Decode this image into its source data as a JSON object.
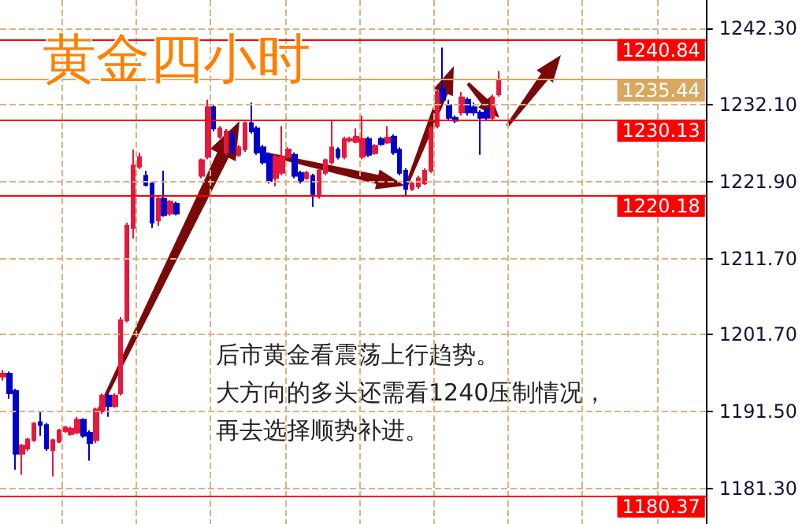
{
  "chart_data": {
    "type": "candlestick",
    "title": "黄金四小时",
    "annotations": [
      "后市黄金看震荡上行趋势。",
      "大方向的多头还需看1240压制情况，",
      "再去选择顺势补进。"
    ],
    "categories": [
      null,
      null,
      null,
      null,
      null,
      null,
      null,
      null,
      null,
      null,
      null,
      null,
      null,
      null,
      null,
      null,
      null,
      null,
      null,
      null,
      null,
      null,
      null,
      null,
      null,
      null,
      null,
      null,
      null,
      null,
      null,
      null,
      null,
      null,
      null,
      null,
      null,
      null,
      null,
      null,
      null,
      null,
      null,
      null,
      null,
      null,
      null,
      null,
      null,
      null,
      null,
      null,
      null,
      null,
      null,
      null,
      null,
      null,
      null,
      null,
      null,
      null,
      null,
      null,
      null,
      null,
      null,
      null,
      null,
      null,
      null,
      null,
      null,
      null,
      null,
      null,
      null,
      null,
      null,
      null,
      null,
      null,
      null,
      null,
      null,
      null,
      null,
      null,
      null,
      null,
      null,
      null,
      null,
      null,
      null,
      null,
      null,
      null,
      null,
      null,
      null,
      null,
      null,
      null,
      null,
      null,
      null,
      null,
      null,
      null,
      null,
      null,
      null,
      null
    ],
    "ohlc": [
      [
        1196.1,
        1197.0,
        1195.6,
        1196.5
      ],
      [
        1196.5,
        1196.8,
        1193.2,
        1193.9
      ],
      [
        1194.2,
        1194.5,
        1183.8,
        1185.9
      ],
      [
        1185.9,
        1187.2,
        1183.1,
        1187.0
      ],
      [
        1186.6,
        1188.0,
        1186.3,
        1187.8
      ],
      [
        1187.7,
        1190.1,
        1187.5,
        1189.9
      ],
      [
        1190.1,
        1191.5,
        1188.3,
        1189.7
      ],
      [
        1189.7,
        1190.0,
        1186.3,
        1186.6
      ],
      [
        1186.4,
        1187.9,
        1182.9,
        1187.7
      ],
      [
        1187.5,
        1189.2,
        1187.3,
        1189.0
      ],
      [
        1188.9,
        1189.6,
        1188.7,
        1189.4
      ],
      [
        1188.5,
        1189.5,
        1188.3,
        1189.2
      ],
      [
        1188.7,
        1190.8,
        1188.5,
        1190.4
      ],
      [
        1190.4,
        1190.6,
        1188.0,
        1188.3
      ],
      [
        1188.7,
        1189.0,
        1185.0,
        1187.3
      ],
      [
        1187.7,
        1192.0,
        1187.3,
        1191.8
      ],
      [
        1191.5,
        1193.9,
        1191.2,
        1193.6
      ],
      [
        1193.6,
        1193.9,
        1190.8,
        1192.2
      ],
      [
        1192.2,
        1193.9,
        1192.0,
        1193.6
      ],
      [
        1193.9,
        1204.0,
        1193.6,
        1203.6
      ],
      [
        1203.6,
        1216.5,
        1203.3,
        1216.1
      ],
      [
        1215.8,
        1226.2,
        1214.4,
        1224.1
      ],
      [
        1223.9,
        1225.8,
        1223.6,
        1225.2
      ],
      [
        1222.7,
        1223.4,
        1221.3,
        1221.5
      ],
      [
        1221.7,
        1222.0,
        1215.8,
        1216.5
      ],
      [
        1216.8,
        1220.0,
        1216.1,
        1219.7
      ],
      [
        1219.7,
        1223.4,
        1217.3,
        1217.5
      ],
      [
        1217.7,
        1219.5,
        1217.4,
        1219.3
      ],
      [
        1219.0,
        1219.3,
        1217.5,
        1217.7
      ],
      null,
      null,
      null,
      [
        1222.7,
        1225.0,
        1222.4,
        1224.8
      ],
      [
        1225.2,
        1232.8,
        1224.9,
        1231.8
      ],
      [
        1231.8,
        1232.1,
        1228.6,
        1229.0
      ],
      [
        1227.9,
        1229.3,
        1227.6,
        1229.0
      ],
      [
        1225.8,
        1228.9,
        1225.5,
        1228.6
      ],
      [
        1228.3,
        1228.6,
        1225.5,
        1225.8
      ],
      [
        1225.5,
        1226.8,
        1225.2,
        1226.5
      ],
      [
        1226.2,
        1229.9,
        1225.9,
        1229.7
      ],
      [
        1229.7,
        1232.4,
        1228.3,
        1228.6
      ],
      [
        1229.0,
        1229.3,
        1225.5,
        1225.8
      ],
      [
        1226.5,
        1226.8,
        1224.2,
        1224.5
      ],
      [
        1225.5,
        1225.8,
        1221.7,
        1222.0
      ],
      [
        1222.4,
        1225.5,
        1221.3,
        1225.2
      ],
      [
        1223.1,
        1229.3,
        1222.8,
        1225.2
      ],
      [
        1225.2,
        1226.5,
        1225.0,
        1226.2
      ],
      [
        1225.5,
        1225.8,
        1222.4,
        1222.7
      ],
      [
        1223.1,
        1223.4,
        1221.7,
        1222.0
      ],
      [
        1222.4,
        1223.4,
        1222.2,
        1223.1
      ],
      [
        1222.7,
        1223.0,
        1218.6,
        1220.3
      ],
      [
        1220.3,
        1223.7,
        1219.7,
        1223.4
      ],
      [
        1223.1,
        1225.0,
        1222.8,
        1224.8
      ],
      [
        1224.5,
        1230.0,
        1224.2,
        1226.5
      ],
      [
        1226.2,
        1226.5,
        1224.9,
        1225.2
      ],
      [
        1225.2,
        1227.9,
        1224.9,
        1227.6
      ],
      [
        1227.4,
        1227.9,
        1227.1,
        1227.6
      ],
      [
        1227.2,
        1229.0,
        1227.0,
        1227.9
      ],
      [
        1225.2,
        1230.7,
        1224.9,
        1227.6
      ],
      [
        1227.6,
        1227.9,
        1225.2,
        1225.5
      ],
      [
        1225.7,
        1226.9,
        1225.5,
        1226.7
      ],
      [
        1227.6,
        1227.9,
        1226.7,
        1226.9
      ],
      [
        1227.1,
        1229.3,
        1226.9,
        1227.8
      ],
      [
        1227.9,
        1228.2,
        1225.5,
        1225.8
      ],
      [
        1226.2,
        1226.5,
        1222.8,
        1223.1
      ],
      [
        1223.4,
        1223.7,
        1220.0,
        1221.0
      ],
      [
        1221.0,
        1222.0,
        1220.7,
        1221.7
      ],
      [
        1221.3,
        1222.7,
        1221.0,
        1222.4
      ],
      [
        1221.7,
        1223.7,
        1221.5,
        1223.4
      ],
      [
        1223.4,
        1229.3,
        1223.1,
        1229.0
      ],
      [
        1229.3,
        1234.2,
        1229.0,
        1233.8
      ],
      [
        1234.2,
        1239.7,
        1232.4,
        1232.8
      ],
      [
        1232.1,
        1232.8,
        1230.0,
        1230.4
      ],
      [
        1230.4,
        1230.7,
        1229.7,
        1230.0
      ],
      [
        1231.1,
        1233.8,
        1230.7,
        1233.1
      ],
      [
        1232.8,
        1233.1,
        1230.7,
        1231.1
      ],
      [
        1231.8,
        1232.4,
        1230.7,
        1231.1
      ],
      [
        1231.1,
        1231.4,
        1225.5,
        1230.4
      ],
      [
        1231.4,
        1231.8,
        1230.0,
        1230.4
      ],
      [
        1230.4,
        1233.5,
        1230.0,
        1233.1
      ],
      [
        1233.5,
        1236.6,
        1233.2,
        1235.44
      ],
      null,
      null,
      null,
      null,
      null,
      null,
      null,
      null,
      null,
      null,
      null,
      null,
      null,
      null,
      null,
      null,
      null,
      null,
      null,
      null,
      null,
      null,
      null,
      null,
      null,
      null,
      null,
      null,
      null,
      null,
      null,
      null,
      null
    ],
    "colors": [
      "#e6193c",
      "#0000cc",
      "#0000cc",
      "#e6193c",
      "#e6193c",
      "#e6193c",
      "#0000cc",
      "#0000cc",
      "#e6193c",
      "#e6193c",
      "#e6193c",
      "#e6193c",
      "#e6193c",
      "#0000cc",
      "#0000cc",
      "#e6193c",
      "#e6193c",
      "#0000cc",
      "#e6193c",
      "#e6193c",
      "#e6193c",
      "#e6193c",
      "#e6193c",
      "#0000cc",
      "#0000cc",
      "#e6193c",
      "#0000cc",
      "#e6193c",
      "#0000cc",
      null,
      null,
      null,
      "#e6193c",
      "#e6193c",
      "#0000cc",
      "#e6193c",
      "#e6193c",
      "#0000cc",
      "#e6193c",
      "#e6193c",
      "#0000cc",
      "#0000cc",
      "#0000cc",
      "#0000cc",
      "#e6193c",
      "#e6193c",
      "#e6193c",
      "#0000cc",
      "#0000cc",
      "#e6193c",
      "#0000cc",
      "#e6193c",
      "#e6193c",
      "#e6193c",
      "#0000cc",
      "#e6193c",
      "#e6193c",
      "#e6193c",
      "#e6193c",
      "#0000cc",
      "#e6193c",
      "#0000cc",
      "#e6193c",
      "#0000cc",
      "#0000cc",
      "#0000cc",
      "#e6193c",
      "#e6193c",
      "#e6193c",
      "#e6193c",
      "#e6193c",
      "#0000cc",
      "#0000cc",
      "#0000cc",
      "#e6193c",
      "#0000cc",
      "#0000cc",
      "#0000cc",
      "#0000cc",
      "#e6193c",
      "#e6193c",
      null,
      null,
      null,
      null,
      null,
      null,
      null,
      null,
      null,
      null,
      null,
      null,
      null,
      null,
      null,
      null,
      null,
      null,
      null,
      null,
      null,
      null,
      null,
      null,
      null,
      null,
      null,
      null,
      null,
      null,
      null,
      null,
      null
    ],
    "ylim": [
      1176.6,
      1246.0
    ],
    "yticks": [
      {
        "value": 1242.3,
        "label": "1242.30"
      },
      {
        "value": 1232.1,
        "label": "1232.10"
      },
      {
        "value": 1221.9,
        "label": "1221.90"
      },
      {
        "value": 1211.7,
        "label": "1211.70"
      },
      {
        "value": 1201.7,
        "label": "1201.70"
      },
      {
        "value": 1191.5,
        "label": "1191.50"
      },
      {
        "value": 1181.3,
        "label": "1181.30"
      }
    ],
    "ref_lines": [
      {
        "axis": "y",
        "value": 1240.84,
        "label": "1240.84",
        "color": "#ff0000"
      },
      {
        "axis": "y",
        "value": 1235.44,
        "label": "1235.44",
        "color": "#d9a860"
      },
      {
        "axis": "y",
        "value": 1230.13,
        "label": "1230.13",
        "color": "#ff0000"
      },
      {
        "axis": "y",
        "value": 1220.18,
        "label": "1220.18",
        "color": "#ff0000"
      },
      {
        "axis": "y",
        "value": 1180.37,
        "label": "1180.37",
        "color": "#ff0000"
      }
    ],
    "grid": true,
    "tick_labels": "y"
  }
}
